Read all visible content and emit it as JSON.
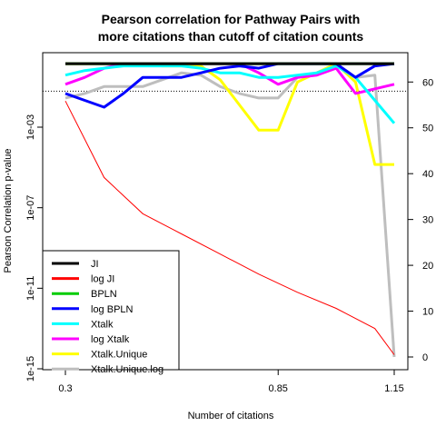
{
  "chart_data": {
    "type": "line",
    "title_lines": [
      "Pearson correlation for Pathway Pairs with",
      "more citations than cutoff of citation counts"
    ],
    "xlabel": "Number of citations",
    "ylabel": "Pearson Correlation p-value",
    "x_ticks": [
      "0.3",
      "0.85",
      "1.15"
    ],
    "y_left_ticks": [
      "1e-15",
      "1e-11",
      "1e-07",
      "1e-03"
    ],
    "y_right_ticks": [
      "0",
      "10",
      "20",
      "30",
      "40",
      "50",
      "60"
    ],
    "x": [
      0.3,
      0.35,
      0.4,
      0.45,
      0.5,
      0.55,
      0.6,
      0.65,
      0.7,
      0.75,
      0.8,
      0.85,
      0.9,
      0.95,
      1.0,
      1.05,
      1.1,
      1.15
    ],
    "xlim": [
      0.3,
      1.15
    ],
    "left_axis": {
      "scale": "log10",
      "range_exp": [
        -15,
        0.7
      ]
    },
    "right_axis": {
      "range": [
        0,
        66
      ]
    },
    "reference_line_right": 58,
    "left_series": [
      {
        "name": "log JI",
        "color": "#ff0000",
        "x": [
          0.3,
          0.4,
          0.5,
          0.6,
          0.7,
          0.8,
          0.9,
          1.0,
          1.1,
          1.15
        ],
        "values_log10": [
          -1.7,
          -5.5,
          -7.3,
          -8.3,
          -9.3,
          -10.3,
          -11.2,
          -12.0,
          -13.0,
          -14.3
        ]
      }
    ],
    "right_series": [
      {
        "name": "JI",
        "color": "#000000",
        "values": [
          64,
          64,
          64,
          64,
          64,
          64,
          64,
          64,
          64,
          64,
          64,
          64,
          64,
          64,
          64,
          64,
          64,
          64
        ]
      },
      {
        "name": "BPLN",
        "color": "#00cc00",
        "values": [
          64,
          64,
          64,
          64,
          64,
          64,
          64,
          64,
          64,
          64,
          64,
          64,
          64,
          64,
          64,
          64,
          64,
          64
        ]
      },
      {
        "name": "log BPLN",
        "color": "#0000ff",
        "x": [
          0.3,
          0.35,
          0.4,
          0.45,
          0.5,
          0.55,
          0.6,
          0.65,
          0.7,
          0.75,
          0.8,
          0.85,
          0.9,
          0.95,
          1.0,
          1.05,
          1.1,
          1.15
        ],
        "values": [
          57.5,
          56,
          54.5,
          57.5,
          61,
          61,
          61,
          62,
          63,
          63.5,
          63,
          64,
          64,
          64,
          64,
          61,
          63.5,
          64
        ]
      },
      {
        "name": "Xtalk",
        "color": "#00ffff",
        "values": [
          61.5,
          62.5,
          63,
          63.5,
          63.5,
          63.5,
          63.5,
          63,
          62,
          62,
          61,
          61,
          61.5,
          62,
          63.5,
          61,
          56,
          51
        ]
      },
      {
        "name": "log Xtalk",
        "color": "#ff00ff",
        "values": [
          59.5,
          61,
          63,
          64,
          64,
          64,
          64,
          64,
          64,
          64,
          62,
          59.5,
          61,
          61.5,
          63,
          57.5,
          58.5,
          59.5
        ]
      },
      {
        "name": "Xtalk.Unique",
        "color": "#ffff00",
        "values": [
          64,
          64,
          64,
          64,
          64,
          63.5,
          63.5,
          63.5,
          60.5,
          55,
          49.5,
          49.5,
          60,
          62,
          64,
          60,
          42,
          42
        ]
      },
      {
        "name": "Xtalk.Unique.log",
        "color": "#bebebe",
        "values": [
          56.5,
          57.5,
          59,
          59,
          59,
          60.5,
          62,
          61.5,
          59,
          57.5,
          56.5,
          56.5,
          61,
          62,
          64,
          61,
          61.5,
          0
        ]
      }
    ],
    "legend": {
      "position": "bottom-left",
      "entries": [
        {
          "name": "JI",
          "color": "#000000"
        },
        {
          "name": "log JI",
          "color": "#ff0000"
        },
        {
          "name": "BPLN",
          "color": "#00cc00"
        },
        {
          "name": "log BPLN",
          "color": "#0000ff"
        },
        {
          "name": "Xtalk",
          "color": "#00ffff"
        },
        {
          "name": "log Xtalk",
          "color": "#ff00ff"
        },
        {
          "name": "Xtalk.Unique",
          "color": "#ffff00"
        },
        {
          "name": "Xtalk.Unique.log",
          "color": "#bebebe"
        }
      ]
    },
    "grid": false
  }
}
